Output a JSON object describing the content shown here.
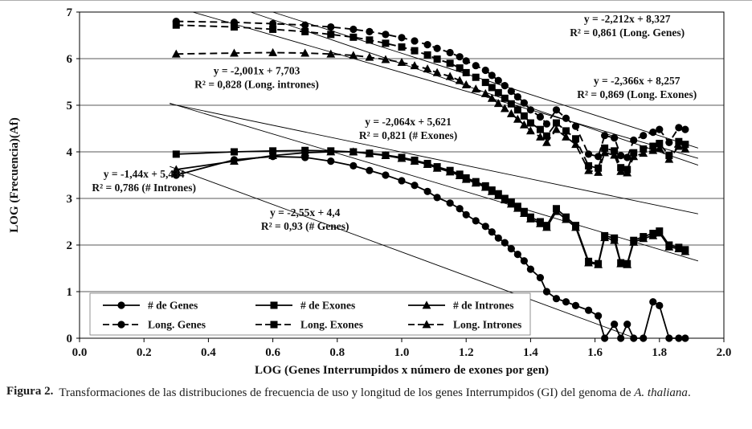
{
  "figure": {
    "caption_label": "Figura 2.",
    "caption_text": "Transformaciones de las distribuciones de frecuencia de uso y longitud de los genes Interrumpidos (GI) del genoma de ",
    "caption_species": "A. thaliana",
    "caption_end": "."
  },
  "chart_data": {
    "type": "scatter",
    "title": "",
    "xlabel": "LOG (Genes Interrumpidos x número de exones por gen)",
    "ylabel": "LOG (Frecuencia)(Af)",
    "xlim": [
      0.0,
      2.0
    ],
    "ylim": [
      0,
      7
    ],
    "x_ticks": [
      "0.0",
      "0.2",
      "0.4",
      "0.6",
      "0.8",
      "1.0",
      "1.2",
      "1.4",
      "1.6",
      "1.8",
      "2.0"
    ],
    "y_ticks": [
      "0",
      "1",
      "2",
      "3",
      "4",
      "5",
      "6",
      "7"
    ],
    "grid": "horizontal",
    "legend_position": "bottom-left-inside",
    "line_color": "#000000",
    "x": [
      0.3,
      0.48,
      0.6,
      0.7,
      0.78,
      0.85,
      0.9,
      0.95,
      1.0,
      1.04,
      1.08,
      1.11,
      1.15,
      1.18,
      1.2,
      1.23,
      1.26,
      1.28,
      1.3,
      1.32,
      1.34,
      1.36,
      1.38,
      1.4,
      1.43,
      1.45,
      1.48,
      1.51,
      1.54,
      1.58,
      1.61,
      1.63,
      1.66,
      1.68,
      1.7,
      1.72,
      1.75,
      1.78,
      1.8,
      1.83,
      1.86,
      1.88
    ],
    "series": [
      {
        "id": "num-genes",
        "name": "# de Genes",
        "marker": "circle",
        "line": "solid",
        "y": [
          3.5,
          3.83,
          3.9,
          3.88,
          3.8,
          3.7,
          3.6,
          3.5,
          3.38,
          3.28,
          3.15,
          3.02,
          2.9,
          2.78,
          2.65,
          2.52,
          2.4,
          2.28,
          2.15,
          2.05,
          1.92,
          1.8,
          1.66,
          1.48,
          1.3,
          1.0,
          0.85,
          0.78,
          0.7,
          0.6,
          0.48,
          0.0,
          0.3,
          0.0,
          0.3,
          0.0,
          0.0,
          0.78,
          0.7,
          0.0,
          0.0,
          0.0
        ]
      },
      {
        "id": "num-exones",
        "name": "# de Exones",
        "marker": "square",
        "line": "solid",
        "y": [
          3.95,
          4.0,
          4.02,
          4.03,
          4.02,
          4.0,
          3.97,
          3.93,
          3.88,
          3.82,
          3.75,
          3.68,
          3.6,
          3.52,
          3.44,
          3.36,
          3.27,
          3.18,
          3.1,
          3.0,
          2.92,
          2.83,
          2.72,
          2.6,
          2.5,
          2.42,
          2.78,
          2.6,
          2.42,
          1.65,
          1.6,
          2.2,
          2.15,
          1.62,
          1.6,
          2.1,
          2.18,
          2.25,
          2.3,
          2.0,
          1.95,
          1.9
        ]
      },
      {
        "id": "num-intrones",
        "name": "# de Intrones",
        "marker": "triangle",
        "line": "solid",
        "y": [
          3.62,
          3.8,
          3.92,
          3.98,
          4.0,
          4.0,
          3.96,
          3.92,
          3.86,
          3.8,
          3.73,
          3.65,
          3.57,
          3.49,
          3.41,
          3.33,
          3.24,
          3.15,
          3.06,
          2.97,
          2.88,
          2.79,
          2.68,
          2.56,
          2.46,
          2.38,
          2.72,
          2.55,
          2.38,
          1.62,
          1.58,
          2.16,
          2.1,
          1.6,
          1.58,
          2.06,
          2.14,
          2.2,
          2.26,
          1.96,
          1.92,
          1.86
        ]
      },
      {
        "id": "long-genes",
        "name": "Long. Genes",
        "marker": "circle",
        "line": "dashed",
        "y": [
          6.8,
          6.78,
          6.75,
          6.72,
          6.68,
          6.63,
          6.58,
          6.52,
          6.45,
          6.38,
          6.3,
          6.22,
          6.13,
          6.04,
          5.95,
          5.85,
          5.75,
          5.64,
          5.53,
          5.42,
          5.3,
          5.18,
          5.05,
          4.9,
          4.75,
          4.6,
          4.9,
          4.72,
          4.55,
          3.95,
          3.9,
          4.35,
          4.3,
          3.92,
          3.88,
          4.25,
          4.35,
          4.42,
          4.48,
          4.2,
          4.52,
          4.48
        ]
      },
      {
        "id": "long-exones",
        "name": "Long. Exones",
        "marker": "square",
        "line": "dashed",
        "y": [
          6.72,
          6.68,
          6.63,
          6.58,
          6.52,
          6.46,
          6.4,
          6.33,
          6.25,
          6.17,
          6.08,
          5.99,
          5.9,
          5.8,
          5.7,
          5.6,
          5.49,
          5.38,
          5.27,
          5.15,
          5.03,
          4.9,
          4.77,
          4.62,
          4.48,
          4.34,
          4.62,
          4.45,
          4.28,
          3.7,
          3.65,
          4.08,
          4.02,
          3.66,
          3.62,
          3.98,
          4.06,
          4.12,
          4.18,
          3.92,
          4.22,
          4.16
        ]
      },
      {
        "id": "long-intrones",
        "name": "Long. Intrones",
        "marker": "triangle",
        "line": "dashed",
        "y": [
          6.1,
          6.12,
          6.13,
          6.12,
          6.1,
          6.07,
          6.03,
          5.98,
          5.92,
          5.85,
          5.78,
          5.7,
          5.62,
          5.53,
          5.44,
          5.35,
          5.25,
          5.15,
          5.04,
          4.93,
          4.82,
          4.7,
          4.58,
          4.45,
          4.32,
          4.2,
          4.48,
          4.32,
          4.16,
          3.6,
          3.56,
          3.98,
          3.93,
          3.58,
          3.55,
          3.9,
          3.97,
          4.03,
          4.08,
          3.84,
          4.12,
          4.06
        ]
      }
    ],
    "trendlines": [
      {
        "id": "long-genes",
        "equation": "y = -2,212x + 8,327",
        "r2": "R² = 0,861 (Long. Genes)",
        "slope": -2.212,
        "intercept": 8.327,
        "label_pos": [
          1.7,
          6.78
        ]
      },
      {
        "id": "long-intrones",
        "equation": "y = -2,001x + 7,703",
        "r2": "R² = 0,828 (Long. intrones)",
        "slope": -2.001,
        "intercept": 7.703,
        "label_pos": [
          0.55,
          5.66
        ]
      },
      {
        "id": "long-exones",
        "equation": "y = -2,366x + 8,257",
        "r2": "R² = 0,869 (Long. Exones)",
        "slope": -2.366,
        "intercept": 8.257,
        "label_pos": [
          1.73,
          5.45
        ]
      },
      {
        "id": "num-exones",
        "equation": "y = -2,064x + 5,621",
        "r2": "R² = 0,821 (# Exones)",
        "slope": -2.064,
        "intercept": 5.621,
        "label_pos": [
          1.02,
          4.57
        ]
      },
      {
        "id": "num-intrones",
        "equation": "y = -1,44x + 5,434",
        "r2": "R² = 0,786 (# Intrones)",
        "slope": -1.44,
        "intercept": 5.434,
        "label_pos": [
          0.2,
          3.45
        ]
      },
      {
        "id": "num-genes",
        "equation": "y = -2,55x + 4,4",
        "r2": "R² = 0,93 (# Genes)",
        "slope": -2.55,
        "intercept": 4.4,
        "label_pos": [
          0.7,
          2.62
        ]
      }
    ]
  }
}
